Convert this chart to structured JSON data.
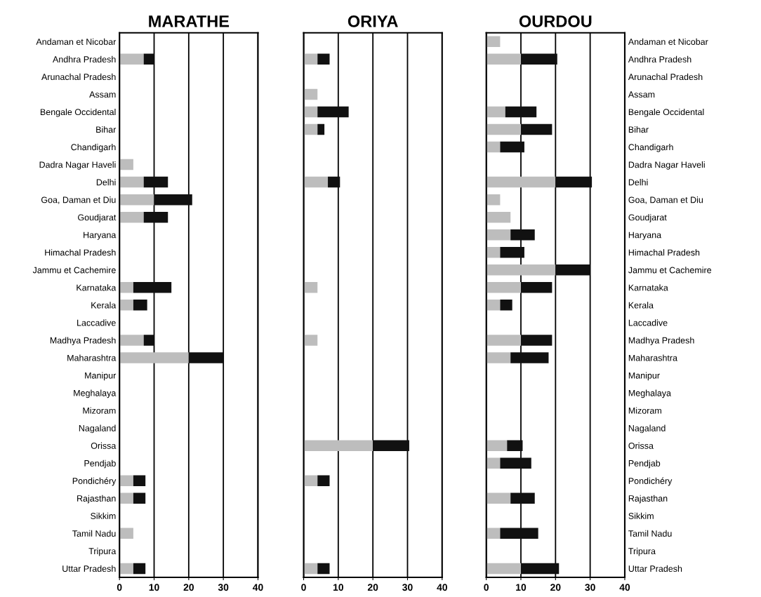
{
  "chart_data": [
    {
      "type": "bar",
      "orientation": "horizontal",
      "stacked": true,
      "title": "MARATHE",
      "grid": "x",
      "xlim": [
        0,
        40
      ],
      "xticks": [
        0,
        10,
        20,
        30,
        40
      ],
      "categories": [
        "Andaman et Nicobar",
        "Andhra Pradesh",
        "Arunachal Pradesh",
        "Assam",
        "Bengale Occidental",
        "Bihar",
        "Chandigarh",
        "Dadra Nagar Haveli",
        "Delhi",
        "Goa, Daman et Diu",
        "Goudjarat",
        "Haryana",
        "Himachal Pradesh",
        "Jammu et Cachemire",
        "Karnataka",
        "Kerala",
        "Laccadive",
        "Madhya Pradesh",
        "Maharashtra",
        "Manipur",
        "Meghalaya",
        "Mizoram",
        "Nagaland",
        "Orissa",
        "Pendjab",
        "Pondichéry",
        "Rajasthan",
        "Sikkim",
        "Tamil Nadu",
        "Tripura",
        "Uttar Pradesh"
      ],
      "series": [
        {
          "color": "#bdbdbd",
          "values": [
            null,
            7,
            null,
            null,
            null,
            null,
            null,
            4,
            7,
            10,
            7,
            null,
            null,
            null,
            4,
            4,
            null,
            7,
            20,
            null,
            null,
            null,
            null,
            null,
            null,
            4,
            4,
            null,
            4,
            null,
            4
          ]
        },
        {
          "color": "#111111",
          "values": [
            null,
            3,
            null,
            null,
            null,
            null,
            null,
            null,
            7,
            11,
            7,
            null,
            null,
            null,
            11,
            4,
            null,
            3,
            10,
            null,
            null,
            null,
            null,
            null,
            null,
            3.5,
            3.5,
            null,
            null,
            null,
            3.5
          ]
        }
      ]
    },
    {
      "type": "bar",
      "orientation": "horizontal",
      "stacked": true,
      "title": "ORIYA",
      "grid": "x",
      "xlim": [
        0,
        40
      ],
      "xticks": [
        0,
        10,
        20,
        30,
        40
      ],
      "tick_labels": "x",
      "categories": [
        null,
        null,
        null,
        null,
        null,
        null,
        null,
        null,
        null,
        null,
        null,
        null,
        null,
        null,
        null,
        null,
        null,
        null,
        null,
        null,
        null,
        null,
        null,
        null,
        null,
        null,
        null,
        null,
        null,
        null,
        null
      ],
      "series": [
        {
          "color": "#bdbdbd",
          "values": [
            null,
            4,
            null,
            4,
            4,
            4,
            null,
            null,
            7,
            null,
            null,
            null,
            null,
            null,
            4,
            null,
            null,
            4,
            null,
            null,
            null,
            null,
            null,
            20,
            null,
            4,
            null,
            null,
            null,
            null,
            4
          ]
        },
        {
          "color": "#111111",
          "values": [
            null,
            3.5,
            null,
            null,
            9,
            2,
            null,
            null,
            3.5,
            null,
            null,
            null,
            null,
            null,
            null,
            null,
            null,
            null,
            null,
            null,
            null,
            null,
            null,
            10.5,
            null,
            3.5,
            null,
            null,
            null,
            null,
            3.5
          ]
        }
      ]
    },
    {
      "type": "bar",
      "orientation": "horizontal",
      "stacked": true,
      "title": "OURDOU",
      "grid": "x",
      "xlim": [
        0,
        40
      ],
      "xticks": [
        0,
        10,
        20,
        30,
        40
      ],
      "categories": [
        "Andaman et Nicobar",
        "Andhra Pradesh",
        "Arunachal Pradesh",
        "Assam",
        "Bengale Occidental",
        "Bihar",
        "Chandigarh",
        "Dadra Nagar Haveli",
        "Delhi",
        "Goa, Daman et Diu",
        "Goudjarat",
        "Haryana",
        "Himachal Pradesh",
        "Jammu et Cachemire",
        "Karnataka",
        "Kerala",
        "Laccadive",
        "Madhya Pradesh",
        "Maharashtra",
        "Manipur",
        "Meghalaya",
        "Mizoram",
        "Nagaland",
        "Orissa",
        "Pendjab",
        "Pondichéry",
        "Rajasthan",
        "Sikkim",
        "Tamil Nadu",
        "Tripura",
        "Uttar Pradesh"
      ],
      "series": [
        {
          "color": "#bdbdbd",
          "values": [
            4,
            10,
            null,
            null,
            5.5,
            10,
            4,
            null,
            20,
            4,
            7,
            7,
            4,
            20,
            10,
            4,
            null,
            10,
            7,
            null,
            null,
            null,
            null,
            6,
            4,
            null,
            7,
            null,
            4,
            null,
            10
          ]
        },
        {
          "color": "#111111",
          "values": [
            null,
            10.5,
            null,
            null,
            9,
            9,
            7,
            null,
            10.5,
            null,
            null,
            7,
            7,
            10,
            9,
            3.5,
            null,
            9,
            11,
            null,
            null,
            null,
            null,
            4.5,
            9,
            null,
            7,
            null,
            11,
            null,
            11
          ]
        }
      ]
    }
  ]
}
